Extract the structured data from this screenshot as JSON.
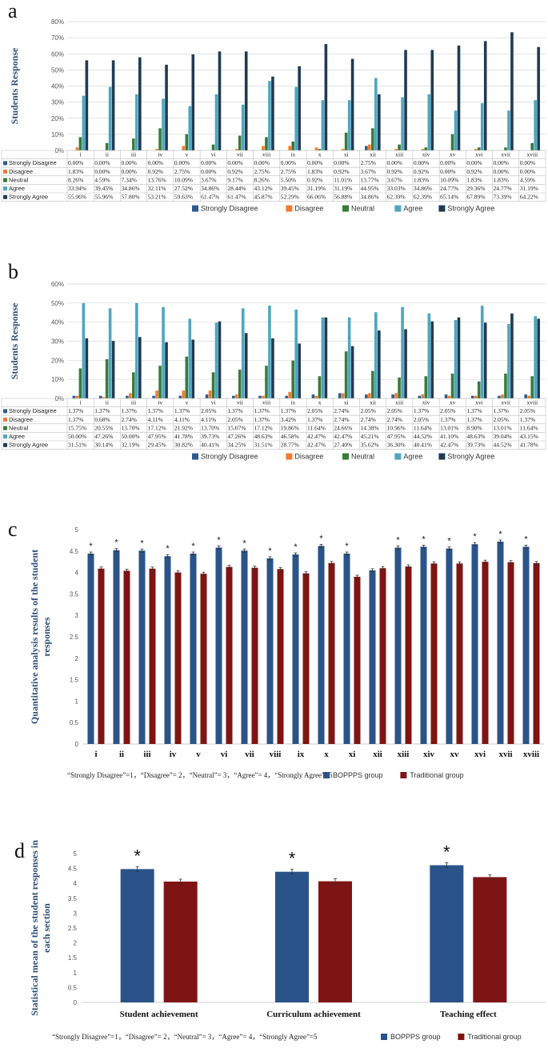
{
  "chart_data": [
    {
      "type": "bar",
      "panel": "a",
      "ylabel": "Students Response",
      "ylim": [
        0,
        80
      ],
      "yticks": [
        "0%",
        "10%",
        "20%",
        "30%",
        "40%",
        "50%",
        "60%",
        "70%",
        "80%"
      ],
      "categories": [
        "i",
        "ii",
        "iii",
        "iv",
        "v",
        "vi",
        "vii",
        "viii",
        "ix",
        "x",
        "xi",
        "xii",
        "xiii",
        "xiv",
        "xv",
        "xvi",
        "xvii",
        "xviii"
      ],
      "series": [
        {
          "name": "Strongly Disagree",
          "color": "#2e5b8f",
          "values": [
            0.0,
            0.0,
            0.0,
            0.0,
            0.0,
            0.0,
            0.0,
            0.0,
            0.0,
            0.0,
            0.0,
            2.75,
            0.0,
            0.0,
            0.0,
            0.0,
            0.0,
            0.0
          ],
          "labels": [
            "0.00%",
            "0.00%",
            "0.00%",
            "0.00%",
            "0.00%",
            "0.00%",
            "0.00%",
            "0.00%",
            "0.00%",
            "0.00%",
            "0.00%",
            "2.75%",
            "0.00%",
            "0.00%",
            "0.00%",
            "0.00%",
            "0.00%",
            "0.00%"
          ]
        },
        {
          "name": "Disagree",
          "color": "#ed7d31",
          "values": [
            1.83,
            0.0,
            0.0,
            0.92,
            2.75,
            0.0,
            0.92,
            2.75,
            2.75,
            1.83,
            0.92,
            3.67,
            0.92,
            0.92,
            0.0,
            0.92,
            0.0,
            0.0
          ],
          "labels": [
            "1.83%",
            "0.00%",
            "0.00%",
            "0.92%",
            "2.75%",
            "0.00%",
            "0.92%",
            "2.75%",
            "2.75%",
            "1.83%",
            "0.92%",
            "3.67%",
            "0.92%",
            "0.92%",
            "0.00%",
            "0.92%",
            "0.00%",
            "0.00%"
          ]
        },
        {
          "name": "Neutral",
          "color": "#3a7a3a",
          "values": [
            8.26,
            4.59,
            7.34,
            13.76,
            10.09,
            3.67,
            9.17,
            8.26,
            5.5,
            0.92,
            11.01,
            13.77,
            3.67,
            1.83,
            10.09,
            1.83,
            1.83,
            4.59
          ],
          "labels": [
            "8.26%",
            "4.59%",
            "7.34%",
            "13.76%",
            "10.09%",
            "3.67%",
            "9.17%",
            "8.26%",
            "5.50%",
            "0.92%",
            "11.01%",
            "13.77%",
            "3.67%",
            "1.83%",
            "10.09%",
            "1.83%",
            "1.83%",
            "4.59%"
          ]
        },
        {
          "name": "Agree",
          "color": "#4ea6c0",
          "values": [
            33.94,
            39.45,
            34.86,
            32.11,
            27.52,
            34.86,
            28.44,
            43.12,
            39.45,
            31.19,
            31.19,
            44.95,
            33.03,
            34.86,
            24.77,
            29.36,
            24.77,
            31.19
          ],
          "labels": [
            "33.94%",
            "39.45%",
            "34.86%",
            "32.11%",
            "27.52%",
            "34.86%",
            "28.44%",
            "43.12%",
            "39.45%",
            "31.19%",
            "31.19%",
            "44.95%",
            "33.03%",
            "34.86%",
            "24.77%",
            "29.36%",
            "24.77%",
            "31.19%"
          ]
        },
        {
          "name": "Strongly Agree",
          "color": "#1f3b52",
          "values": [
            55.96,
            55.96,
            57.8,
            53.21,
            59.63,
            61.47,
            61.47,
            45.87,
            52.29,
            66.06,
            56.88,
            34.86,
            62.39,
            62.39,
            65.14,
            67.89,
            73.39,
            64.22
          ],
          "labels": [
            "55.96%",
            "55.96%",
            "57.80%",
            "53.21%",
            "59.63%",
            "61.47%",
            "61.47%",
            "45.87%",
            "52.29%",
            "66.06%",
            "56.88%",
            "34.86%",
            "62.39%",
            "62.39%",
            "65.14%",
            "67.89%",
            "73.39%",
            "64.22%"
          ]
        }
      ]
    },
    {
      "type": "bar",
      "panel": "b",
      "ylabel": "Students Response",
      "ylim": [
        0,
        60
      ],
      "yticks": [
        "0%",
        "10%",
        "20%",
        "30%",
        "40%",
        "50%",
        "60%"
      ],
      "categories": [
        "i",
        "ii",
        "iii",
        "iv",
        "v",
        "vi",
        "vii",
        "viii",
        "ix",
        "x",
        "xi",
        "xii",
        "xiii",
        "xiv",
        "xv",
        "xvi",
        "xvii",
        "xviii"
      ],
      "series": [
        {
          "name": "Strongly Disagree",
          "color": "#2e5b8f",
          "values": [
            1.37,
            1.37,
            1.37,
            1.37,
            1.37,
            2.05,
            1.37,
            1.37,
            1.37,
            2.05,
            2.74,
            2.05,
            2.05,
            1.37,
            2.05,
            1.37,
            1.37,
            2.05
          ],
          "labels": [
            "1.37%",
            "1.37%",
            "1.37%",
            "1.37%",
            "1.37%",
            "2.05%",
            "1.37%",
            "1.37%",
            "1.37%",
            "2.05%",
            "2.74%",
            "2.05%",
            "2.05%",
            "1.37%",
            "2.05%",
            "1.37%",
            "1.37%",
            "2.05%"
          ]
        },
        {
          "name": "Disagree",
          "color": "#ed7d31",
          "values": [
            1.37,
            0.68,
            2.74,
            4.11,
            4.11,
            4.11,
            2.05,
            1.37,
            3.42,
            1.37,
            2.74,
            2.74,
            2.74,
            2.05,
            1.37,
            1.37,
            2.05,
            1.37
          ],
          "labels": [
            "1.37%",
            "0.68%",
            "2.74%",
            "4.11%",
            "4.11%",
            "4.11%",
            "2.05%",
            "1.37%",
            "3.42%",
            "1.37%",
            "2.74%",
            "2.74%",
            "2.74%",
            "2.05%",
            "1.37%",
            "1.37%",
            "2.05%",
            "1.37%"
          ]
        },
        {
          "name": "Neutral",
          "color": "#3a7a3a",
          "values": [
            15.75,
            20.55,
            13.7,
            17.12,
            21.92,
            13.7,
            15.07,
            17.12,
            19.86,
            11.64,
            24.66,
            14.38,
            10.96,
            11.64,
            13.01,
            8.9,
            13.01,
            11.64
          ],
          "labels": [
            "15.75%",
            "20.55%",
            "13.70%",
            "17.12%",
            "21.92%",
            "13.70%",
            "15.07%",
            "17.12%",
            "19.86%",
            "11.64%",
            "24.66%",
            "14.38%",
            "10.96%",
            "11.64%",
            "13.01%",
            "8.90%",
            "13.01%",
            "11.64%"
          ]
        },
        {
          "name": "Agree",
          "color": "#4ea6c0",
          "values": [
            50.0,
            47.26,
            50.0,
            47.95,
            41.78,
            39.73,
            47.26,
            48.63,
            46.58,
            42.47,
            42.47,
            45.21,
            47.95,
            44.52,
            41.1,
            48.63,
            39.04,
            43.15
          ],
          "labels": [
            "50.00%",
            "47.26%",
            "50.00%",
            "47.95%",
            "41.78%",
            "39.73%",
            "47.26%",
            "48.63%",
            "46.58%",
            "42.47%",
            "42.47%",
            "45.21%",
            "47.95%",
            "44.52%",
            "41.10%",
            "48.63%",
            "39.04%",
            "43.15%"
          ]
        },
        {
          "name": "Strongly Agree",
          "color": "#1f3b52",
          "values": [
            31.51,
            30.14,
            32.19,
            29.45,
            30.82,
            40.41,
            34.25,
            31.51,
            28.77,
            42.47,
            27.4,
            35.62,
            36.3,
            40.41,
            42.47,
            39.73,
            44.52,
            41.78
          ],
          "labels": [
            "31.51%",
            "30.14%",
            "32.19%",
            "29.45%",
            "30.82%",
            "40.41%",
            "34.25%",
            "31.51%",
            "28.77%",
            "42.47%",
            "27.40%",
            "35.62%",
            "36.30%",
            "40.41%",
            "42.47%",
            "39.73%",
            "44.52%",
            "41.78%"
          ]
        }
      ]
    },
    {
      "type": "bar",
      "panel": "c",
      "ylabel": "Quantitative analysis results of the student responses",
      "ylim": [
        0,
        5
      ],
      "yticks": [
        "0",
        "0.5",
        "1",
        "1.5",
        "2",
        "2.5",
        "3",
        "3.5",
        "4",
        "4.5",
        "5"
      ],
      "categories": [
        "i",
        "ii",
        "iii",
        "iv",
        "v",
        "vi",
        "vii",
        "viii",
        "ix",
        "x",
        "xi",
        "xii",
        "xiii",
        "xiv",
        "xv",
        "xvi",
        "xvii",
        "xviii"
      ],
      "series": [
        {
          "name": "BOPPPS group",
          "color": "#2a5389",
          "values": [
            4.44,
            4.52,
            4.51,
            4.38,
            4.44,
            4.58,
            4.51,
            4.33,
            4.42,
            4.62,
            4.44,
            4.05,
            4.58,
            4.6,
            4.56,
            4.66,
            4.72,
            4.6
          ]
        },
        {
          "name": "Traditional group",
          "color": "#7f1414",
          "values": [
            4.09,
            4.04,
            4.09,
            4.0,
            3.97,
            4.13,
            4.11,
            4.08,
            3.98,
            4.22,
            3.9,
            4.1,
            4.14,
            4.21,
            4.21,
            4.25,
            4.24,
            4.22
          ]
        }
      ],
      "significant": [
        true,
        true,
        true,
        true,
        true,
        true,
        true,
        true,
        true,
        true,
        true,
        false,
        true,
        true,
        true,
        true,
        true,
        true
      ],
      "star": "*",
      "note": "“Strongly Disagree”=1，“Disagree”= 2，“Neutral”= 3，“Agree”= 4，“Strongly Agree”=5"
    },
    {
      "type": "bar",
      "panel": "d",
      "ylabel": "Statistical mean of the student responses in each section",
      "ylim": [
        0,
        5
      ],
      "yticks": [
        "0",
        "0.5",
        "1",
        "1.5",
        "2",
        "2.5",
        "3",
        "3.5",
        "4",
        "4.5",
        "5"
      ],
      "categories": [
        "Student achievement",
        "Curriculum achievement",
        "Teaching effect"
      ],
      "series": [
        {
          "name": "BOPPPS group",
          "color": "#2a5389",
          "values": [
            4.48,
            4.39,
            4.61
          ]
        },
        {
          "name": "Traditional group",
          "color": "#7f1414",
          "values": [
            4.06,
            4.07,
            4.21
          ]
        }
      ],
      "significant": [
        true,
        true,
        true
      ],
      "star": "*",
      "note": "“Strongly Disagree”=1，“Disagree”= 2，“Neutral”= 3，“Agree”= 4，“Strongly Agree”=5"
    }
  ]
}
